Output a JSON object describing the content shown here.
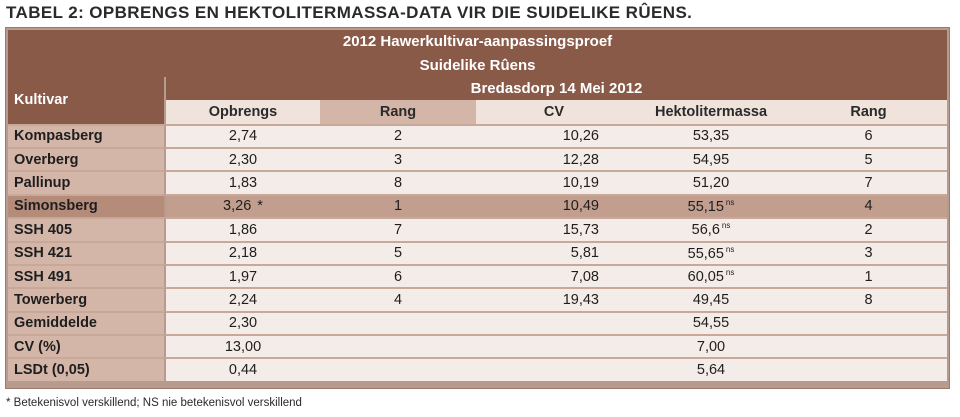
{
  "title": "TABEL 2: OPBRENGS EN HEKTOLITERMASSA-DATA VIR DIE SUIDELIKE RÛENS.",
  "banner_line1": "2012 Hawerkultivar-aanpassingsproef",
  "banner_line2": "Suidelike Rûens",
  "location_date": "Bredasdorp 14 Mei 2012",
  "kultivar_header": "Kultivar",
  "columns": [
    "Opbrengs",
    "Rang",
    "CV",
    "Hektolitermassa",
    "Rang"
  ],
  "rows": [
    {
      "name": "Kompasberg",
      "opbrengs": "2,74",
      "opbrengs_mark": "",
      "rang1": "2",
      "cv": "10,26",
      "hl": "53,35",
      "hl_mark": "",
      "rang2": "6",
      "highlight": false
    },
    {
      "name": "Overberg",
      "opbrengs": "2,30",
      "opbrengs_mark": "",
      "rang1": "3",
      "cv": "12,28",
      "hl": "54,95",
      "hl_mark": "",
      "rang2": "5",
      "highlight": false
    },
    {
      "name": "Pallinup",
      "opbrengs": "1,83",
      "opbrengs_mark": "",
      "rang1": "8",
      "cv": "10,19",
      "hl": "51,20",
      "hl_mark": "",
      "rang2": "7",
      "highlight": false
    },
    {
      "name": "Simonsberg",
      "opbrengs": "3,26",
      "opbrengs_mark": "*",
      "rang1": "1",
      "cv": "10,49",
      "hl": "55,15",
      "hl_mark": "ns",
      "rang2": "4",
      "highlight": true
    },
    {
      "name": "SSH 405",
      "opbrengs": "1,86",
      "opbrengs_mark": "",
      "rang1": "7",
      "cv": "15,73",
      "hl": "56,6",
      "hl_mark": "ns",
      "rang2": "2",
      "highlight": false
    },
    {
      "name": "SSH 421",
      "opbrengs": "2,18",
      "opbrengs_mark": "",
      "rang1": "5",
      "cv": "5,81",
      "hl": "55,65",
      "hl_mark": "ns",
      "rang2": "3",
      "highlight": false
    },
    {
      "name": "SSH 491",
      "opbrengs": "1,97",
      "opbrengs_mark": "",
      "rang1": "6",
      "cv": "7,08",
      "hl": "60,05",
      "hl_mark": "ns",
      "rang2": "1",
      "highlight": false
    },
    {
      "name": "Towerberg",
      "opbrengs": "2,24",
      "opbrengs_mark": "",
      "rang1": "4",
      "cv": "19,43",
      "hl": "49,45",
      "hl_mark": "",
      "rang2": "8",
      "highlight": false
    },
    {
      "name": "Gemiddelde",
      "opbrengs": "2,30",
      "opbrengs_mark": "",
      "rang1": "",
      "cv": "",
      "hl": "54,55",
      "hl_mark": "",
      "rang2": "",
      "highlight": false
    },
    {
      "name": "CV (%)",
      "opbrengs": "13,00",
      "opbrengs_mark": "",
      "rang1": "",
      "cv": "",
      "hl": "7,00",
      "hl_mark": "",
      "rang2": "",
      "highlight": false
    },
    {
      "name": "LSDt (0,05)",
      "opbrengs": "0,44",
      "opbrengs_mark": "",
      "rang1": "",
      "cv": "",
      "hl": "5,64",
      "hl_mark": "",
      "rang2": "",
      "highlight": false
    }
  ],
  "footnote": "* Betekenisvol verskillend; NS nie betekenisvol verskillend",
  "colors": {
    "banner": "#8a5a49",
    "light_row": "#f4ece8",
    "name_cell": "#d4b6a8",
    "highlight_row": "#c29e8e"
  }
}
